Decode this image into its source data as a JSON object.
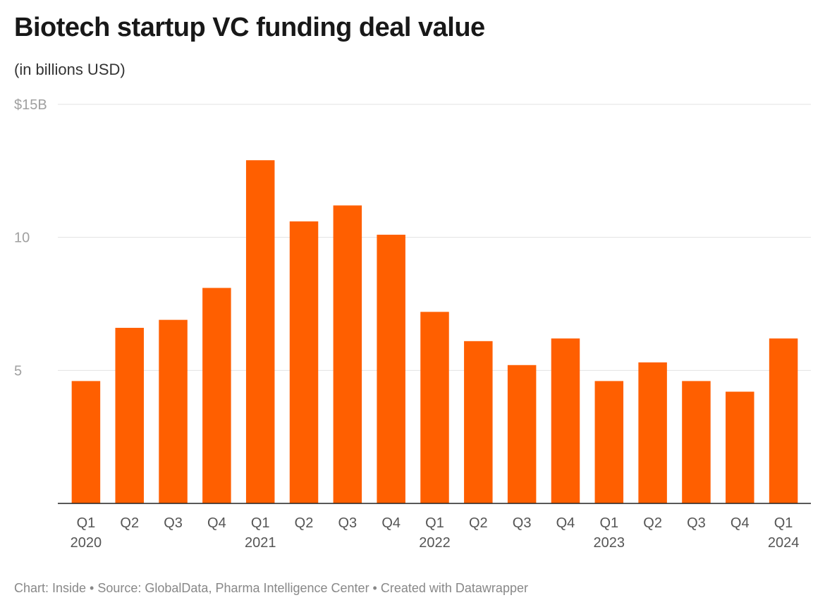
{
  "title": "Biotech startup VC funding deal value",
  "subtitle": "(in billions USD)",
  "footer": "Chart: Inside • Source: GlobalData, Pharma Intelligence Center • Created with Datawrapper",
  "colors": {
    "bar": "#ff5f00",
    "grid": "#e3e3e3",
    "baseline": "#222222"
  },
  "chart_data": {
    "type": "bar",
    "title": "Biotech startup VC funding deal value",
    "subtitle": "(in billions USD)",
    "xlabel": "",
    "ylabel": "",
    "ylim": [
      0,
      15
    ],
    "grid": true,
    "y_ticks": [
      {
        "value": 15,
        "label": "$15B"
      },
      {
        "value": 10,
        "label": "10"
      },
      {
        "value": 5,
        "label": "5"
      }
    ],
    "categories": [
      {
        "quarter": "Q1",
        "year": "2020"
      },
      {
        "quarter": "Q2",
        "year": ""
      },
      {
        "quarter": "Q3",
        "year": ""
      },
      {
        "quarter": "Q4",
        "year": ""
      },
      {
        "quarter": "Q1",
        "year": "2021"
      },
      {
        "quarter": "Q2",
        "year": ""
      },
      {
        "quarter": "Q3",
        "year": ""
      },
      {
        "quarter": "Q4",
        "year": ""
      },
      {
        "quarter": "Q1",
        "year": "2022"
      },
      {
        "quarter": "Q2",
        "year": ""
      },
      {
        "quarter": "Q3",
        "year": ""
      },
      {
        "quarter": "Q4",
        "year": ""
      },
      {
        "quarter": "Q1",
        "year": "2023"
      },
      {
        "quarter": "Q2",
        "year": ""
      },
      {
        "quarter": "Q3",
        "year": ""
      },
      {
        "quarter": "Q4",
        "year": ""
      },
      {
        "quarter": "Q1",
        "year": "2024"
      }
    ],
    "values": [
      4.6,
      6.6,
      6.9,
      8.1,
      12.9,
      10.6,
      11.2,
      10.1,
      7.2,
      6.1,
      5.2,
      6.2,
      4.6,
      5.3,
      4.6,
      4.2,
      6.2
    ]
  }
}
